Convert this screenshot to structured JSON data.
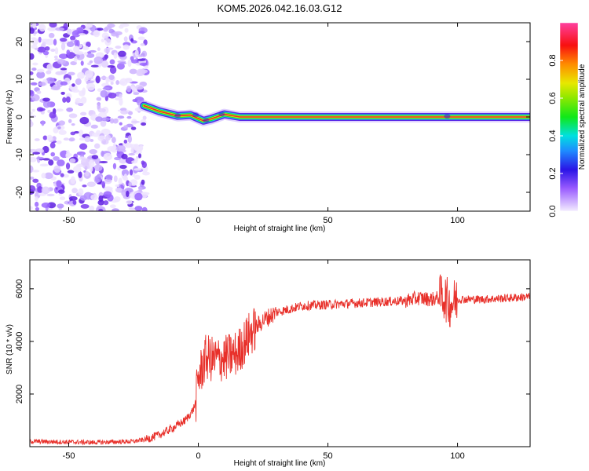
{
  "title": "KOM5.2026.042.16.03.G12",
  "colors": {
    "snr_line": "#e8302a",
    "track_core": "#e8302a"
  },
  "chart_data": [
    {
      "type": "heatmap",
      "name": "spectrogram",
      "xlabel": "Height of straight line (km)",
      "ylabel": "Frequency (Hz)",
      "xlim": [
        -65,
        128
      ],
      "ylim": [
        -25,
        25
      ],
      "xticks": [
        -50,
        0,
        50,
        100
      ],
      "yticks": [
        20,
        10,
        0,
        -10,
        -20
      ],
      "track": [
        {
          "x": -21,
          "y": 3
        },
        {
          "x": -15,
          "y": 1.5
        },
        {
          "x": -8,
          "y": 0.3
        },
        {
          "x": -3,
          "y": 0.5
        },
        {
          "x": 2,
          "y": -1
        },
        {
          "x": 5,
          "y": -0.5
        },
        {
          "x": 10,
          "y": 0.7
        },
        {
          "x": 16,
          "y": 0
        },
        {
          "x": 128,
          "y": 0
        }
      ],
      "colorbar": {
        "label": "Normalized spectral amplitude",
        "lim": [
          0,
          1
        ],
        "ticks": [
          "0.0",
          "0.2",
          "0.4",
          "0.6",
          "0.8"
        ]
      }
    },
    {
      "type": "line",
      "name": "snr",
      "xlabel": "Height of straight line (km)",
      "ylabel": "SNR (10 * v/v)",
      "xlim": [
        -65,
        128
      ],
      "ylim": [
        0,
        7100
      ],
      "xticks": [
        -50,
        0,
        50,
        100
      ],
      "yticks": [
        2000,
        4000,
        6000
      ],
      "series": [
        {
          "name": "SNR",
          "x": [
            -65,
            -40,
            -25,
            -20,
            -15,
            -10,
            -5,
            -2,
            -1,
            0,
            3,
            6,
            10,
            15,
            20,
            25,
            30,
            40,
            50,
            60,
            70,
            80,
            85,
            90,
            95,
            97,
            100,
            110,
            120,
            128
          ],
          "y": [
            200,
            160,
            200,
            280,
            450,
            700,
            1000,
            1400,
            1700,
            2600,
            3400,
            3300,
            3350,
            3550,
            4300,
            4800,
            5100,
            5350,
            5400,
            5450,
            5500,
            5550,
            5650,
            5600,
            5700,
            5400,
            5600,
            5600,
            5650,
            5700
          ]
        }
      ]
    }
  ]
}
